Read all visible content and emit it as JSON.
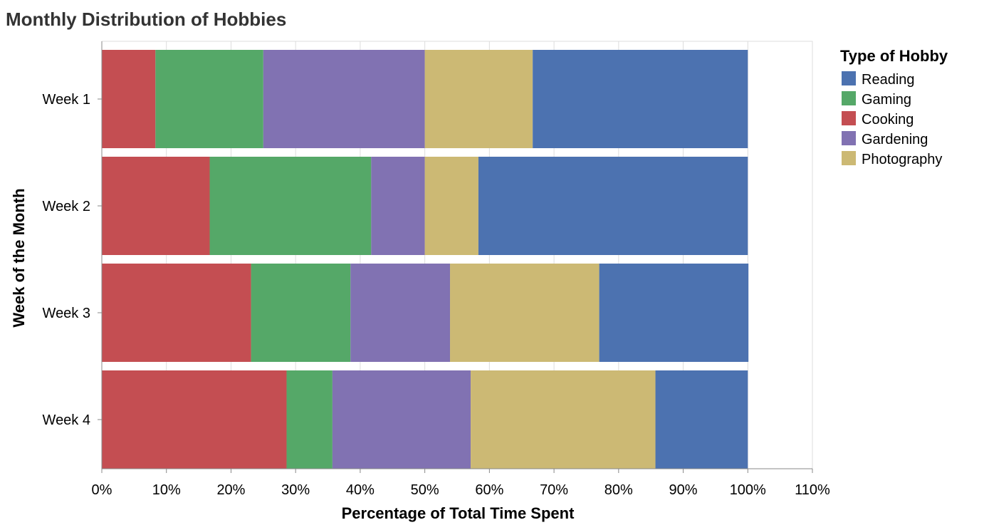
{
  "chart_data": {
    "type": "bar",
    "orientation": "horizontal",
    "stacked": true,
    "title": "Monthly Distribution of Hobbies",
    "xlabel": "Percentage of Total Time Spent",
    "ylabel": "Week of the Month",
    "xlim": [
      0,
      110
    ],
    "x_ticks": [
      "0%",
      "10%",
      "20%",
      "30%",
      "40%",
      "50%",
      "60%",
      "70%",
      "80%",
      "90%",
      "100%",
      "110%"
    ],
    "grid": true,
    "legend_title": "Type of Hobby",
    "legend_position": "right",
    "categories": [
      "Week 1",
      "Week 2",
      "Week 3",
      "Week 4"
    ],
    "stack_order": [
      "Cooking",
      "Gaming",
      "Gardening",
      "Photography",
      "Reading"
    ],
    "series": [
      {
        "name": "Reading",
        "color": "#4c72b0",
        "values": [
          33.3,
          41.7,
          23.1,
          14.3
        ]
      },
      {
        "name": "Gaming",
        "color": "#55a868",
        "values": [
          16.7,
          25.0,
          15.4,
          7.1
        ]
      },
      {
        "name": "Cooking",
        "color": "#c44e52",
        "values": [
          8.3,
          16.7,
          23.1,
          28.6
        ]
      },
      {
        "name": "Gardening",
        "color": "#8172b2",
        "values": [
          25.0,
          8.3,
          15.4,
          21.4
        ]
      },
      {
        "name": "Photography",
        "color": "#ccb974",
        "values": [
          16.7,
          8.3,
          23.1,
          28.6
        ]
      }
    ]
  }
}
